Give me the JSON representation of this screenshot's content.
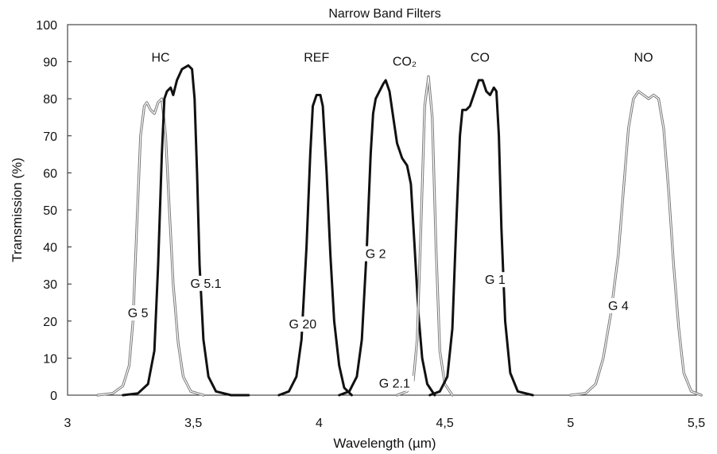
{
  "chart_data": {
    "type": "line",
    "title": "Narrow Band Filters",
    "xlabel": "Wavelength (µm)",
    "ylabel": "Transmission (%)",
    "xlim": [
      3.0,
      5.5
    ],
    "ylim": [
      0,
      100
    ],
    "x_ticks": [
      3.0,
      3.5,
      4.0,
      4.5,
      5.0,
      5.5
    ],
    "x_tick_labels": [
      "3",
      "3,5",
      "4",
      "4,5",
      "5",
      "5,5"
    ],
    "y_ticks": [
      0,
      10,
      20,
      30,
      40,
      50,
      60,
      70,
      80,
      90,
      100
    ],
    "y_tick_labels": [
      "0",
      "10",
      "20",
      "30",
      "40",
      "50",
      "60",
      "70",
      "80",
      "90",
      "100"
    ],
    "grid": false,
    "legend": "none",
    "gas_labels": [
      {
        "text": "HC",
        "x": 3.37,
        "y": 90
      },
      {
        "text": "REF",
        "x": 3.99,
        "y": 90
      },
      {
        "text": "CO₂",
        "x": 4.34,
        "y": 89
      },
      {
        "text": "CO",
        "x": 4.64,
        "y": 90
      },
      {
        "text": "NO",
        "x": 5.29,
        "y": 90
      }
    ],
    "series": [
      {
        "name": "G 5",
        "style": "double",
        "label": {
          "x": 3.28,
          "y": 21
        },
        "points": [
          [
            3.12,
            0
          ],
          [
            3.18,
            0.5
          ],
          [
            3.22,
            2.5
          ],
          [
            3.245,
            8
          ],
          [
            3.26,
            20
          ],
          [
            3.275,
            45
          ],
          [
            3.29,
            70
          ],
          [
            3.305,
            78
          ],
          [
            3.315,
            79
          ],
          [
            3.33,
            77
          ],
          [
            3.345,
            76
          ],
          [
            3.36,
            79
          ],
          [
            3.375,
            80
          ],
          [
            3.39,
            70
          ],
          [
            3.405,
            50
          ],
          [
            3.42,
            30
          ],
          [
            3.44,
            14
          ],
          [
            3.46,
            5
          ],
          [
            3.49,
            1
          ],
          [
            3.54,
            0
          ]
        ]
      },
      {
        "name": "G 5.1",
        "style": "bold",
        "label": {
          "x": 3.55,
          "y": 29
        },
        "points": [
          [
            3.22,
            0
          ],
          [
            3.28,
            0.5
          ],
          [
            3.32,
            3
          ],
          [
            3.345,
            12
          ],
          [
            3.36,
            35
          ],
          [
            3.375,
            65
          ],
          [
            3.385,
            80
          ],
          [
            3.395,
            82
          ],
          [
            3.41,
            83
          ],
          [
            3.42,
            81
          ],
          [
            3.435,
            85
          ],
          [
            3.455,
            88
          ],
          [
            3.48,
            89
          ],
          [
            3.495,
            88
          ],
          [
            3.505,
            80
          ],
          [
            3.515,
            60
          ],
          [
            3.525,
            35
          ],
          [
            3.54,
            15
          ],
          [
            3.56,
            5
          ],
          [
            3.59,
            1
          ],
          [
            3.65,
            0
          ],
          [
            3.72,
            0
          ]
        ]
      },
      {
        "name": "G 20",
        "style": "bold",
        "label": {
          "x": 3.935,
          "y": 18
        },
        "points": [
          [
            3.84,
            0
          ],
          [
            3.88,
            1
          ],
          [
            3.91,
            5
          ],
          [
            3.93,
            15
          ],
          [
            3.95,
            40
          ],
          [
            3.965,
            65
          ],
          [
            3.975,
            78
          ],
          [
            3.99,
            81
          ],
          [
            4.005,
            81
          ],
          [
            4.015,
            78
          ],
          [
            4.03,
            60
          ],
          [
            4.045,
            38
          ],
          [
            4.06,
            20
          ],
          [
            4.08,
            8
          ],
          [
            4.1,
            2
          ],
          [
            4.13,
            0
          ]
        ]
      },
      {
        "name": "G 2",
        "style": "bold",
        "label": {
          "x": 4.225,
          "y": 37
        },
        "points": [
          [
            4.08,
            0
          ],
          [
            4.12,
            1
          ],
          [
            4.15,
            5
          ],
          [
            4.17,
            15
          ],
          [
            4.19,
            40
          ],
          [
            4.205,
            65
          ],
          [
            4.215,
            76
          ],
          [
            4.225,
            80
          ],
          [
            4.24,
            82
          ],
          [
            4.255,
            84
          ],
          [
            4.265,
            85
          ],
          [
            4.28,
            82
          ],
          [
            4.295,
            75
          ],
          [
            4.31,
            68
          ],
          [
            4.33,
            64
          ],
          [
            4.35,
            62
          ],
          [
            4.365,
            57
          ],
          [
            4.38,
            40
          ],
          [
            4.395,
            22
          ],
          [
            4.41,
            10
          ],
          [
            4.43,
            3
          ],
          [
            4.46,
            0
          ]
        ]
      },
      {
        "name": "G 2.1",
        "style": "double",
        "label": {
          "x": 4.3,
          "y": 2
        },
        "points": [
          [
            4.31,
            0
          ],
          [
            4.35,
            1
          ],
          [
            4.375,
            4
          ],
          [
            4.39,
            15
          ],
          [
            4.405,
            45
          ],
          [
            4.42,
            78
          ],
          [
            4.435,
            86
          ],
          [
            4.45,
            75
          ],
          [
            4.465,
            40
          ],
          [
            4.48,
            12
          ],
          [
            4.5,
            3
          ],
          [
            4.53,
            0
          ]
        ]
      },
      {
        "name": "G 1",
        "style": "bold",
        "label": {
          "x": 4.7,
          "y": 30
        },
        "points": [
          [
            4.44,
            0
          ],
          [
            4.48,
            1
          ],
          [
            4.51,
            5
          ],
          [
            4.53,
            18
          ],
          [
            4.545,
            45
          ],
          [
            4.56,
            70
          ],
          [
            4.57,
            77
          ],
          [
            4.585,
            77
          ],
          [
            4.6,
            78
          ],
          [
            4.615,
            81
          ],
          [
            4.635,
            85
          ],
          [
            4.65,
            85
          ],
          [
            4.665,
            82
          ],
          [
            4.68,
            81
          ],
          [
            4.695,
            83
          ],
          [
            4.705,
            82
          ],
          [
            4.715,
            70
          ],
          [
            4.725,
            45
          ],
          [
            4.74,
            20
          ],
          [
            4.76,
            6
          ],
          [
            4.79,
            1
          ],
          [
            4.85,
            0
          ]
        ]
      },
      {
        "name": "G 4",
        "style": "double",
        "label": {
          "x": 5.19,
          "y": 23
        },
        "points": [
          [
            5.0,
            0
          ],
          [
            5.06,
            0.5
          ],
          [
            5.1,
            3
          ],
          [
            5.13,
            10
          ],
          [
            5.16,
            22
          ],
          [
            5.19,
            38
          ],
          [
            5.21,
            55
          ],
          [
            5.23,
            72
          ],
          [
            5.25,
            80
          ],
          [
            5.27,
            82
          ],
          [
            5.29,
            81
          ],
          [
            5.31,
            80
          ],
          [
            5.33,
            81
          ],
          [
            5.35,
            80
          ],
          [
            5.37,
            72
          ],
          [
            5.39,
            55
          ],
          [
            5.41,
            35
          ],
          [
            5.43,
            18
          ],
          [
            5.45,
            6
          ],
          [
            5.48,
            1
          ],
          [
            5.52,
            0
          ]
        ]
      }
    ]
  }
}
